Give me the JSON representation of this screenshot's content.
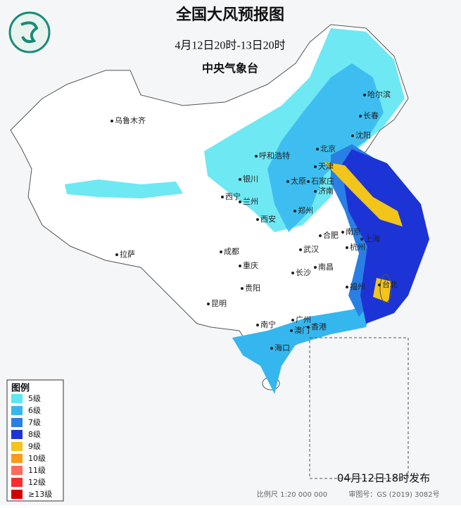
{
  "header": {
    "title": "全国大风预报图",
    "period": "4月12日20时-13日20时",
    "issuer": "中央气象台"
  },
  "legend": {
    "title": "图例",
    "items": [
      {
        "label": "5级",
        "color": "#5ee6f2"
      },
      {
        "label": "6级",
        "color": "#36b6ee"
      },
      {
        "label": "7级",
        "color": "#2a7fe4"
      },
      {
        "label": "8级",
        "color": "#1c34d6"
      },
      {
        "label": "9级",
        "color": "#f3c41a"
      },
      {
        "label": "10级",
        "color": "#ff9a1a"
      },
      {
        "label": "11级",
        "color": "#ff6a5c"
      },
      {
        "label": "12级",
        "color": "#ff2d2d"
      },
      {
        "label": "≥13级",
        "color": "#d10000"
      }
    ]
  },
  "cities": [
    {
      "name": "乌鲁木齐"
    },
    {
      "name": "哈尔滨"
    },
    {
      "name": "长春"
    },
    {
      "name": "沈阳"
    },
    {
      "name": "北京"
    },
    {
      "name": "天津"
    },
    {
      "name": "呼和浩特"
    },
    {
      "name": "银川"
    },
    {
      "name": "太原"
    },
    {
      "name": "石家庄"
    },
    {
      "name": "济南"
    },
    {
      "name": "西宁"
    },
    {
      "name": "兰州"
    },
    {
      "name": "西安"
    },
    {
      "name": "郑州"
    },
    {
      "name": "合肥"
    },
    {
      "name": "南京"
    },
    {
      "name": "上海"
    },
    {
      "name": "杭州"
    },
    {
      "name": "武汉"
    },
    {
      "name": "成都"
    },
    {
      "name": "重庆"
    },
    {
      "name": "拉萨"
    },
    {
      "name": "长沙"
    },
    {
      "name": "南昌"
    },
    {
      "name": "福州"
    },
    {
      "name": "台北"
    },
    {
      "name": "贵阳"
    },
    {
      "name": "昆明"
    },
    {
      "name": "南宁"
    },
    {
      "name": "广州"
    },
    {
      "name": "澳门"
    },
    {
      "name": "香港"
    },
    {
      "name": "海口"
    }
  ],
  "footer": {
    "issued": "04月12日18时发布",
    "scale": "比例尺 1:20 000 000",
    "map_number": "审图号：GS (2019) 3082号"
  }
}
